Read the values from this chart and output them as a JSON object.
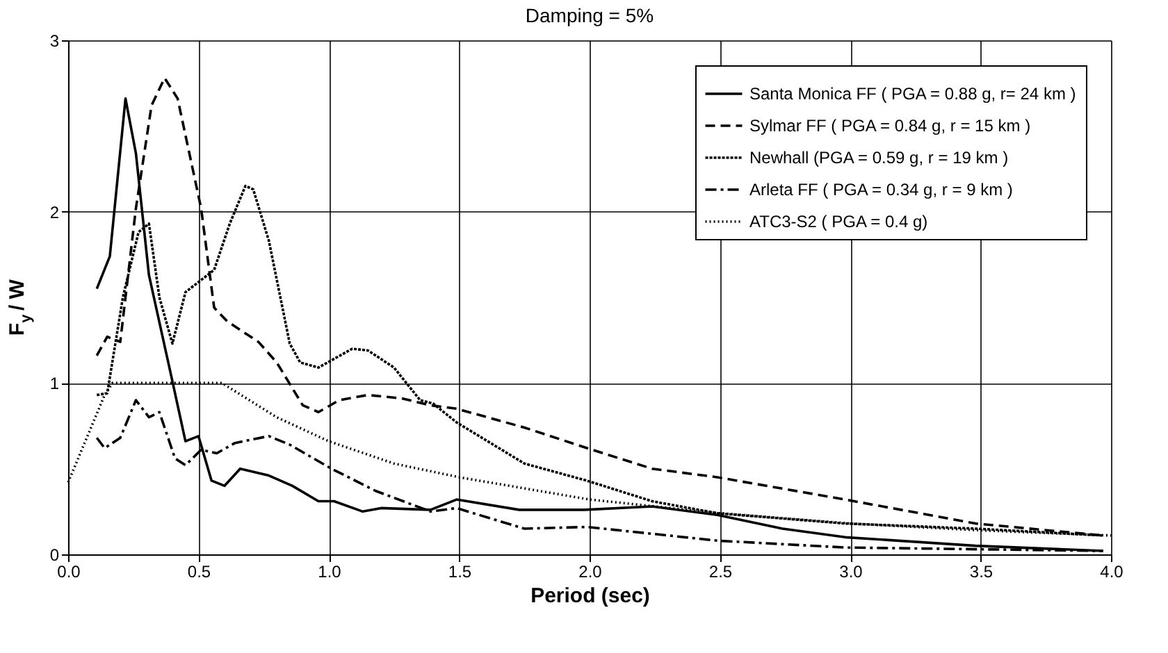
{
  "chart_data": {
    "type": "line",
    "title": "Damping = 5%",
    "xlabel": "Period (sec)",
    "ylabel": "F$_{y}$ / W",
    "xlim": [
      0,
      4
    ],
    "xticks": [
      {
        "value": 0,
        "label": "0.0"
      },
      {
        "value": 0.5,
        "label": "0.5"
      },
      {
        "value": 1,
        "label": "1.0"
      },
      {
        "value": 1.5,
        "label": "1.5"
      },
      {
        "value": 2,
        "label": "2.0"
      },
      {
        "value": 2.5,
        "label": "2.5"
      },
      {
        "value": 3,
        "label": "3.0"
      },
      {
        "value": 3.5,
        "label": "3.5"
      },
      {
        "value": 4,
        "label": "4.0"
      }
    ],
    "ylim": [
      0,
      3
    ],
    "yticks": [
      0,
      1,
      2,
      3
    ],
    "grid": true,
    "legend": "top right",
    "series": [
      {
        "name": "Santa Monica FF ( PGA = 0.88 g, r= 24 km )",
        "color": "#000000",
        "line_style": "solid",
        "x": [
          0.11,
          0.16,
          0.22,
          0.26,
          0.31,
          0.4,
          0.45,
          0.5,
          0.55,
          0.6,
          0.66,
          0.77,
          0.86,
          0.96,
          1.02,
          1.13,
          1.2,
          1.39,
          1.49,
          1.73,
          1.98,
          2.24,
          2.49,
          2.74,
          2.98,
          3.48,
          3.97
        ],
        "values": [
          1.55,
          1.74,
          2.66,
          2.34,
          1.63,
          1.01,
          0.66,
          0.69,
          0.43,
          0.4,
          0.5,
          0.46,
          0.4,
          0.31,
          0.31,
          0.25,
          0.27,
          0.26,
          0.32,
          0.26,
          0.26,
          0.28,
          0.23,
          0.15,
          0.1,
          0.05,
          0.02
        ]
      },
      {
        "name": "Sylmar FF ( PGA = 0.84 g, r = 15 km )",
        "color": "#000000",
        "line_style": "dashed",
        "x": [
          0.11,
          0.15,
          0.2,
          0.26,
          0.32,
          0.37,
          0.42,
          0.51,
          0.56,
          0.61,
          0.73,
          0.8,
          0.9,
          0.96,
          1.04,
          1.15,
          1.28,
          1.39,
          1.49,
          1.75,
          1.99,
          2.24,
          2.49,
          2.98,
          3.48,
          3.97
        ],
        "values": [
          1.16,
          1.27,
          1.24,
          2.02,
          2.62,
          2.78,
          2.66,
          2.02,
          1.44,
          1.36,
          1.24,
          1.12,
          0.87,
          0.83,
          0.9,
          0.93,
          0.91,
          0.87,
          0.85,
          0.74,
          0.62,
          0.5,
          0.45,
          0.32,
          0.18,
          0.11
        ]
      },
      {
        "name": "Newhall (PGA = 0.59 g, r = 19 km )",
        "color": "#000000",
        "line_style": "dotted",
        "x": [
          0.11,
          0.15,
          0.21,
          0.27,
          0.31,
          0.35,
          0.4,
          0.45,
          0.56,
          0.62,
          0.68,
          0.71,
          0.77,
          0.85,
          0.89,
          0.96,
          1.09,
          1.15,
          1.25,
          1.35,
          1.4,
          1.49,
          1.75,
          1.99,
          2.24,
          2.49,
          2.98,
          3.48,
          3.97
        ],
        "values": [
          0.93,
          0.94,
          1.5,
          1.88,
          1.93,
          1.5,
          1.23,
          1.53,
          1.66,
          1.93,
          2.15,
          2.13,
          1.83,
          1.23,
          1.12,
          1.09,
          1.2,
          1.19,
          1.09,
          0.9,
          0.88,
          0.77,
          0.53,
          0.43,
          0.31,
          0.24,
          0.18,
          0.15,
          0.11
        ]
      },
      {
        "name": "Arleta FF ( PGA = 0.34 g, r = 9 km )",
        "color": "#000000",
        "line_style": "dashdot",
        "x": [
          0.11,
          0.14,
          0.2,
          0.26,
          0.31,
          0.35,
          0.41,
          0.45,
          0.51,
          0.57,
          0.64,
          0.77,
          0.85,
          1.01,
          1.18,
          1.39,
          1.49,
          1.75,
          1.99,
          2.24,
          2.49,
          2.98,
          3.48,
          3.97
        ],
        "values": [
          0.68,
          0.62,
          0.68,
          0.9,
          0.8,
          0.83,
          0.56,
          0.52,
          0.61,
          0.59,
          0.65,
          0.69,
          0.64,
          0.5,
          0.37,
          0.25,
          0.27,
          0.15,
          0.16,
          0.12,
          0.08,
          0.04,
          0.03,
          0.02
        ]
      },
      {
        "name": "ATC3-S2 ( PGA = 0.4 g)",
        "color": "#000000",
        "line_style": "finedotted",
        "x": [
          0.0,
          0.14,
          0.17,
          0.59,
          0.8,
          1.0,
          1.25,
          1.5,
          2.0,
          2.5,
          3.0,
          3.5,
          4.0
        ],
        "values": [
          0.42,
          0.93,
          1.0,
          1.0,
          0.8,
          0.66,
          0.53,
          0.45,
          0.32,
          0.24,
          0.18,
          0.14,
          0.11
        ]
      }
    ]
  }
}
